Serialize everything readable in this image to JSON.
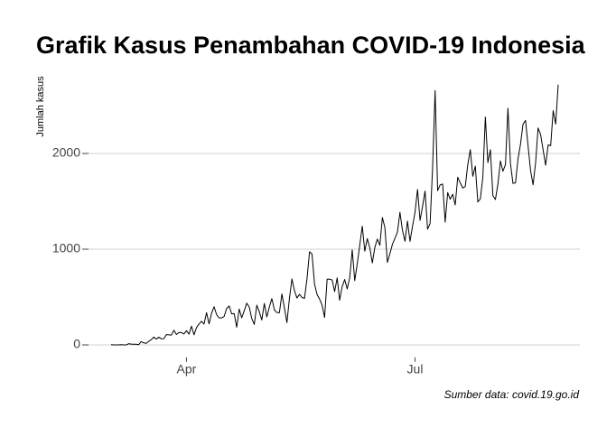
{
  "chart_data": {
    "type": "line",
    "title": "Grafik Kasus Penambahan COVID-19 Indonesia",
    "y_label": "Jumlah kasus",
    "source": "Sumber data: covid.19.go.id",
    "color": "#000000",
    "grid": true,
    "categories": [
      null,
      null,
      null,
      null,
      null,
      null,
      null,
      null,
      null,
      null,
      null,
      null,
      null,
      null,
      null,
      null,
      null,
      null,
      null,
      null,
      null,
      null,
      null,
      null,
      null,
      null,
      null,
      null,
      null,
      null,
      "Apr",
      null,
      null,
      null,
      null,
      null,
      null,
      null,
      null,
      null,
      null,
      null,
      null,
      null,
      null,
      null,
      null,
      null,
      null,
      null,
      null,
      null,
      null,
      null,
      null,
      null,
      null,
      null,
      null,
      null,
      null,
      null,
      null,
      null,
      null,
      null,
      null,
      null,
      null,
      null,
      null,
      null,
      null,
      null,
      null,
      null,
      null,
      null,
      null,
      null,
      null,
      null,
      null,
      null,
      null,
      null,
      null,
      null,
      null,
      null,
      null,
      null,
      null,
      null,
      null,
      null,
      null,
      null,
      null,
      null,
      null,
      null,
      null,
      null,
      null,
      null,
      null,
      null,
      null,
      null,
      null,
      null,
      null,
      null,
      null,
      null,
      null,
      null,
      null,
      null,
      null,
      "Jul",
      null,
      null,
      null,
      null,
      null,
      null,
      null,
      null,
      null,
      null,
      null,
      null,
      null,
      null,
      null,
      null,
      null,
      null,
      null,
      null,
      null,
      null,
      null,
      null,
      null,
      null,
      null,
      null,
      null,
      null,
      null,
      null,
      null,
      null,
      null,
      null,
      null,
      null,
      null,
      null,
      null,
      null,
      null,
      null,
      null,
      null,
      null,
      null,
      null,
      null,
      null,
      null,
      null,
      null,
      null,
      null,
      null
    ],
    "values": [
      2,
      0,
      0,
      0,
      2,
      0,
      0,
      13,
      8,
      7,
      7,
      3,
      35,
      21,
      17,
      38,
      55,
      82,
      60,
      81,
      64,
      65,
      107,
      105,
      103,
      153,
      109,
      130,
      129,
      114,
      149,
      113,
      196,
      106,
      181,
      218,
      247,
      218,
      337,
      219,
      330,
      399,
      316,
      282,
      282,
      297,
      380,
      407,
      325,
      327,
      185,
      375,
      283,
      357,
      436,
      396,
      275,
      214,
      415,
      347,
      260,
      433,
      292,
      395,
      484,
      367,
      338,
      336,
      533,
      387,
      233,
      484,
      689,
      568,
      490,
      529,
      496,
      486,
      693,
      973,
      949,
      634,
      526,
      479,
      415,
      287,
      686,
      687,
      678,
      557,
      700,
      467,
      609,
      684,
      585,
      703,
      993,
      672,
      847,
      1043,
      1241,
      979,
      1111,
      1014,
      857,
      1017,
      1106,
      1041,
      1331,
      1226,
      862,
      954,
      1051,
      1113,
      1178,
      1385,
      1198,
      1082,
      1293,
      1082,
      1240,
      1385,
      1624,
      1301,
      1447,
      1607,
      1209,
      1268,
      1853,
      2657,
      1611,
      1671,
      1681,
      1282,
      1591,
      1522,
      1574,
      1462,
      1752,
      1693,
      1639,
      1655,
      1882,
      2040,
      1761,
      1868,
      1493,
      1525,
      1748,
      2381,
      1904,
      2040,
      1560,
      1519,
      1679,
      1922,
      1815,
      1882,
      2473,
      1893,
      1687,
      1693,
      1942,
      2098,
      2307,
      2345,
      2081,
      1821,
      1673,
      1902,
      2266,
      2197,
      2037,
      1877,
      2090,
      2081,
      2447,
      2306,
      2719
    ],
    "ylim": [
      -130,
      2760
    ],
    "yticks": [
      0,
      1000,
      2000
    ]
  }
}
